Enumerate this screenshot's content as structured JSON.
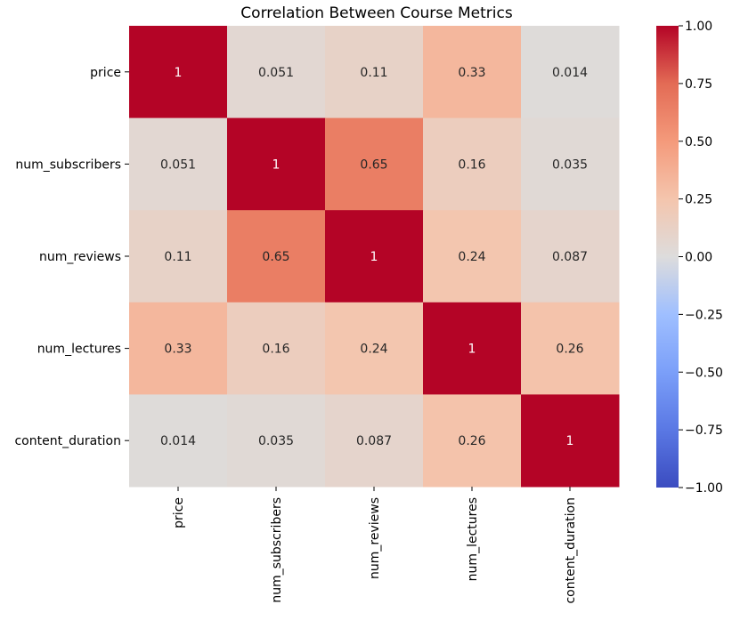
{
  "chart_data": {
    "type": "heatmap",
    "title": "Correlation Between Course Metrics",
    "xlabel": "",
    "ylabel": "",
    "rows": [
      "price",
      "num_subscribers",
      "num_reviews",
      "num_lectures",
      "content_duration"
    ],
    "columns": [
      "price",
      "num_subscribers",
      "num_reviews",
      "num_lectures",
      "content_duration"
    ],
    "values": [
      [
        1,
        0.051,
        0.11,
        0.33,
        0.014
      ],
      [
        0.051,
        1,
        0.65,
        0.16,
        0.035
      ],
      [
        0.11,
        0.65,
        1,
        0.24,
        0.087
      ],
      [
        0.33,
        0.16,
        0.24,
        1,
        0.26
      ],
      [
        0.014,
        0.035,
        0.087,
        0.26,
        1
      ]
    ],
    "labels": [
      [
        "1",
        "0.051",
        "0.11",
        "0.33",
        "0.014"
      ],
      [
        "0.051",
        "1",
        "0.65",
        "0.16",
        "0.035"
      ],
      [
        "0.11",
        "0.65",
        "1",
        "0.24",
        "0.087"
      ],
      [
        "0.33",
        "0.16",
        "0.24",
        "1",
        "0.26"
      ],
      [
        "0.014",
        "0.035",
        "0.087",
        "0.26",
        "1"
      ]
    ],
    "colorbar": {
      "vmin": -1.0,
      "vmax": 1.0,
      "ticks": [
        1.0,
        0.75,
        0.5,
        0.25,
        0.0,
        -0.25,
        -0.5,
        -0.75,
        -1.0
      ],
      "tick_labels": [
        "1.00",
        "0.75",
        "0.50",
        "0.25",
        "0.00",
        "−0.25",
        "−0.50",
        "−0.75",
        "−1.00"
      ]
    },
    "colormap": "coolwarm",
    "grid": false
  }
}
